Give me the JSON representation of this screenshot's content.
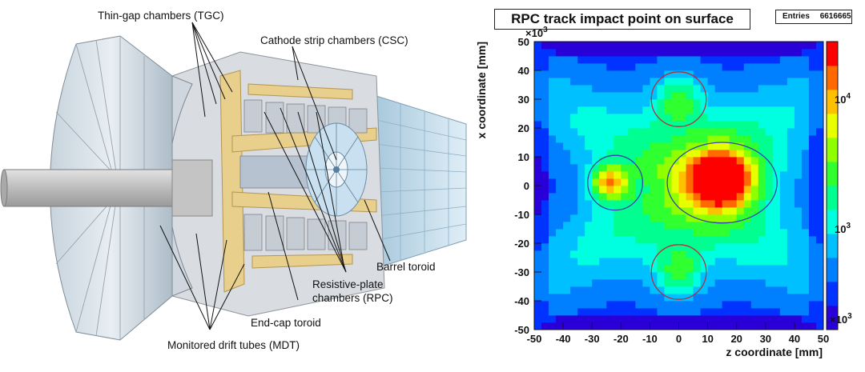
{
  "diagram": {
    "labels": {
      "tgc": "Thin-gap chambers (TGC)",
      "csc": "Cathode strip chambers (CSC)",
      "barrel": "Barrel toroid",
      "rpc1": "Resistive-plate",
      "rpc2": "chambers (RPC)",
      "endcap": "End-cap toroid",
      "mdt": "Monitored drift tubes (MDT)"
    }
  },
  "histogram": {
    "title": "RPC track impact point on surface",
    "entries_label": "Entries",
    "entries_value": "6616665",
    "multiplier": "×10",
    "multiplier_exp": "3",
    "colz_labels": [
      {
        "base": "10",
        "exp": "4"
      },
      {
        "base": "10",
        "exp": "3"
      }
    ]
  },
  "chart_data": {
    "type": "heatmap",
    "title": "RPC track impact point on surface",
    "xlabel": "z coordinate [mm]",
    "ylabel": "x coordinate [mm]",
    "xlim": [
      -50,
      50
    ],
    "ylim": [
      -50,
      50
    ],
    "xticks": [
      "-50",
      "-40",
      "-30",
      "-20",
      "-10",
      "0",
      "10",
      "20",
      "30",
      "40",
      "50"
    ],
    "yticks": [
      "50",
      "40",
      "30",
      "20",
      "10",
      "0",
      "-10",
      "-20",
      "-30",
      "-40",
      "-50"
    ],
    "axis_multiplier": "×10^3",
    "entries": 6616665,
    "z_scale": "log",
    "hotspots": [
      {
        "name": "center",
        "z": 15,
        "x": 2,
        "level": "max"
      },
      {
        "name": "left",
        "z": -24,
        "x": 1,
        "level": "high"
      },
      {
        "name": "top",
        "z": 0,
        "x": 30,
        "level": "medium"
      },
      {
        "name": "bottom",
        "z": 0,
        "x": -30,
        "level": "medium"
      }
    ],
    "circles": [
      {
        "cz": 0,
        "cx": 30,
        "r": 9.5,
        "color": "red"
      },
      {
        "cz": 0,
        "cx": -30,
        "r": 9.5,
        "color": "red"
      },
      {
        "cz": -22,
        "cx": 1,
        "r": 9.5,
        "color": "blue"
      },
      {
        "cz": 15,
        "cx": 1,
        "rz": 19,
        "rx": 14,
        "color": "blue"
      }
    ]
  }
}
